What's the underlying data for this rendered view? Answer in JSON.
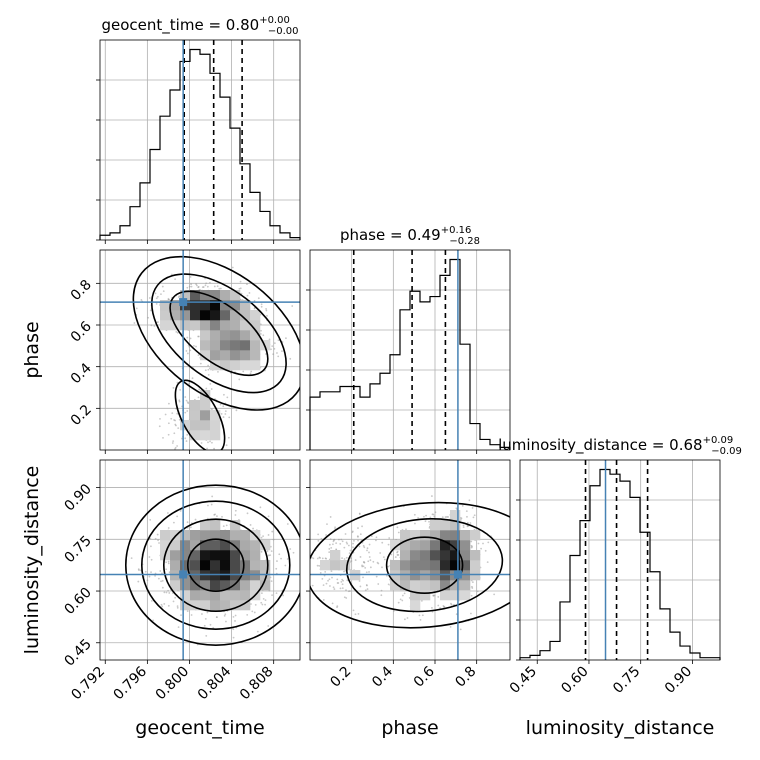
{
  "chart_data": {
    "type": "corner",
    "parameters": [
      "geocent_time",
      "phase",
      "luminosity_distance"
    ],
    "truths": [
      0.7994,
      0.71,
      0.648
    ],
    "titles": [
      {
        "param": "geocent_time",
        "median": "0.80",
        "plus": "+0.00",
        "minus": "−0.00"
      },
      {
        "param": "phase",
        "median": "0.49",
        "plus": "+0.16",
        "minus": "−0.28"
      },
      {
        "param": "luminosity_distance",
        "median": "0.68",
        "plus": "+0.09",
        "minus": "−0.09"
      }
    ],
    "ranges": [
      [
        0.7915,
        0.8105
      ],
      [
        0.0,
        0.96
      ],
      [
        0.4,
        0.98
      ]
    ],
    "ticks": [
      {
        "values": [
          0.792,
          0.796,
          0.8,
          0.804,
          0.808
        ],
        "labels": [
          "0.792",
          "0.796",
          "0.800",
          "0.804",
          "0.808"
        ]
      },
      {
        "values": [
          0.2,
          0.4,
          0.6,
          0.8
        ],
        "labels": [
          "0.2",
          "0.4",
          "0.6",
          "0.8"
        ]
      },
      {
        "values": [
          0.45,
          0.6,
          0.75,
          0.9
        ],
        "labels": [
          "0.45",
          "0.60",
          "0.75",
          "0.90"
        ]
      }
    ],
    "quantiles": [
      [
        0.7995,
        0.8023,
        0.805
      ],
      [
        0.21,
        0.49,
        0.65
      ],
      [
        0.59,
        0.68,
        0.77
      ]
    ],
    "hist": [
      [
        2,
        3,
        6,
        14,
        24,
        38,
        52,
        63,
        75,
        80,
        78,
        70,
        60,
        47,
        32,
        20,
        12,
        6,
        3,
        1
      ],
      [
        20,
        22,
        22,
        24,
        24,
        20,
        25,
        29,
        36,
        53,
        60,
        56,
        58,
        66,
        72,
        40,
        10,
        4,
        2,
        1
      ],
      [
        1,
        2,
        4,
        8,
        25,
        45,
        60,
        75,
        82,
        80,
        77,
        70,
        55,
        38,
        22,
        12,
        6,
        3,
        1,
        1
      ]
    ]
  }
}
